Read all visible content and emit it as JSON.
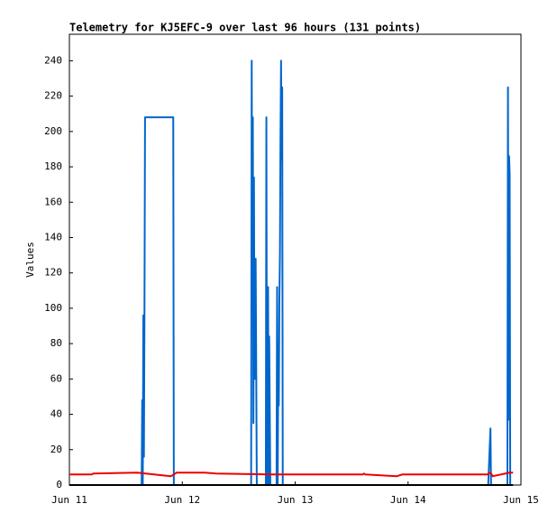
{
  "chart_data": {
    "type": "line",
    "title": "Telemetry for KJ5EFC-9 over last 96 hours (131 points)",
    "y_label": "Values",
    "xlim": [
      11,
      15
    ],
    "xticks": [
      {
        "value": 11,
        "label": "Jun 11"
      },
      {
        "value": 12,
        "label": "Jun 12"
      },
      {
        "value": 13,
        "label": "Jun 13"
      },
      {
        "value": 14,
        "label": "Jun 14"
      },
      {
        "value": 15,
        "label": "Jun 15"
      }
    ],
    "ylim": [
      0,
      255
    ],
    "yticks": [
      0,
      20,
      40,
      60,
      80,
      100,
      120,
      140,
      160,
      180,
      200,
      220,
      240
    ],
    "series": [
      {
        "color": "#0066cc",
        "x": [
          11,
          11.64,
          11.645,
          11.65,
          11.655,
          11.66,
          11.665,
          11.67,
          11.92,
          11.925,
          12.61,
          12.615,
          12.62,
          12.625,
          12.63,
          12.635,
          12.64,
          12.65,
          12.66,
          12.74,
          12.745,
          12.75,
          12.76,
          12.765,
          12.77,
          12.78,
          12.835,
          12.84,
          12.845,
          12.85,
          12.855,
          12.86,
          12.865,
          12.87,
          12.875,
          12.88,
          12.885,
          12.89,
          12.9,
          14.71,
          14.72,
          14.73,
          14.735,
          14.88,
          14.885,
          14.89,
          14.895,
          14.9,
          14.905
        ],
        "values": [
          0,
          0,
          48,
          0,
          96,
          16,
          97,
          208,
          208,
          0,
          0,
          240,
          100,
          208,
          35,
          174,
          60,
          128,
          0,
          0,
          208,
          0,
          112,
          0,
          84,
          0,
          0,
          112,
          0,
          64,
          45,
          104,
          130,
          195,
          240,
          184,
          225,
          0,
          0,
          0,
          16,
          32,
          0,
          0,
          225,
          37,
          186,
          176,
          0
        ]
      },
      {
        "color": "#ee0000",
        "x": [
          11,
          11.2,
          11.21,
          11.6,
          11.9,
          11.95,
          12.2,
          12.3,
          12.8,
          13.0,
          13.6,
          13.61,
          13.62,
          13.9,
          13.95,
          14.7,
          14.73,
          14.75,
          14.9,
          14.93
        ],
        "values": [
          6,
          6,
          6.5,
          7,
          5,
          7,
          7,
          6.5,
          6,
          6,
          6,
          6.5,
          6,
          5,
          6,
          6,
          7,
          5,
          7,
          7
        ]
      },
      {
        "color": "#000000",
        "x": [
          11,
          14.93
        ],
        "values": [
          0,
          0
        ]
      }
    ]
  }
}
